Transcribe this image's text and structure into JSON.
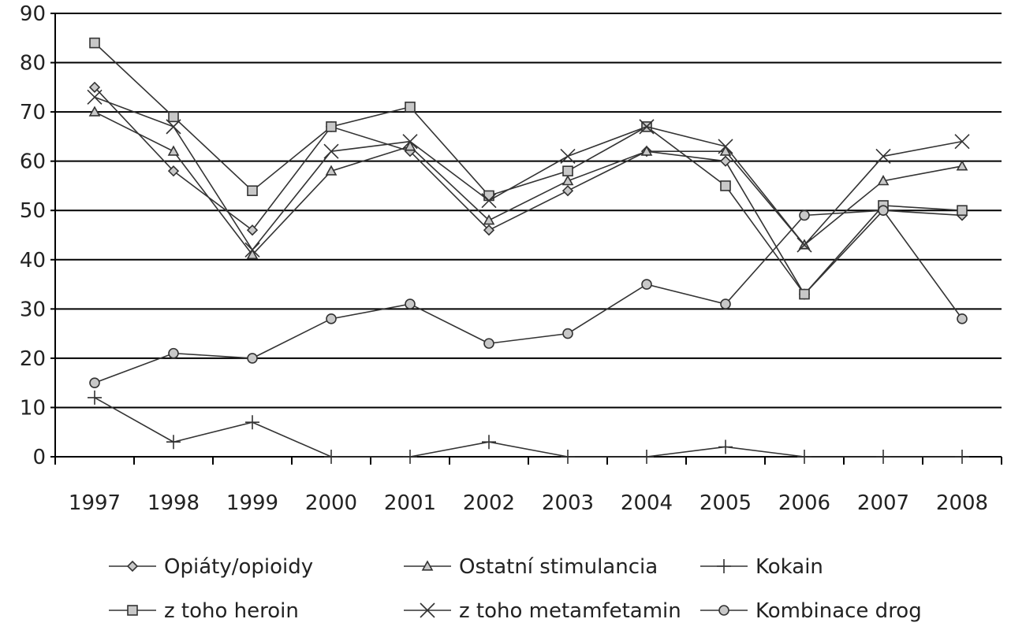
{
  "chart_data": {
    "type": "line",
    "title": "",
    "xlabel": "",
    "ylabel": "",
    "x": [
      "1997",
      "1998",
      "1999",
      "2000",
      "2001",
      "2002",
      "2003",
      "2004",
      "2005",
      "2006",
      "2007",
      "2008"
    ],
    "ylim": [
      0,
      90
    ],
    "yticks": [
      "0",
      "10",
      "20",
      "30",
      "40",
      "50",
      "60",
      "70",
      "80",
      "90"
    ],
    "grid": "horizontal",
    "legend_position": "bottom",
    "series": [
      {
        "name": "Opiáty/opioidy",
        "marker": "diamond",
        "values": [
          75,
          58,
          46,
          67,
          62,
          46,
          54,
          62,
          60,
          33,
          50,
          49
        ]
      },
      {
        "name": "Ostatní stimulancia",
        "marker": "triangle",
        "values": [
          70,
          62,
          41,
          58,
          63,
          48,
          56,
          62,
          62,
          43,
          56,
          59
        ]
      },
      {
        "name": "Kokain",
        "marker": "plus",
        "values": [
          12,
          3,
          7,
          0,
          0,
          3,
          0,
          0,
          2,
          0,
          0,
          0
        ]
      },
      {
        "name": "z toho heroin",
        "marker": "square",
        "values": [
          84,
          69,
          54,
          67,
          71,
          53,
          58,
          67,
          55,
          33,
          51,
          50
        ]
      },
      {
        "name": "z toho metamfetamin",
        "marker": "x",
        "values": [
          73,
          67,
          42,
          62,
          64,
          52,
          61,
          67,
          63,
          43,
          61,
          64
        ]
      },
      {
        "name": "Kombinace drog",
        "marker": "circle",
        "values": [
          15,
          21,
          20,
          28,
          31,
          23,
          25,
          35,
          31,
          49,
          50,
          28
        ]
      }
    ],
    "colors": {
      "line": "#333333",
      "marker_fill": "#c8c8c8",
      "grid": "#000000"
    }
  }
}
